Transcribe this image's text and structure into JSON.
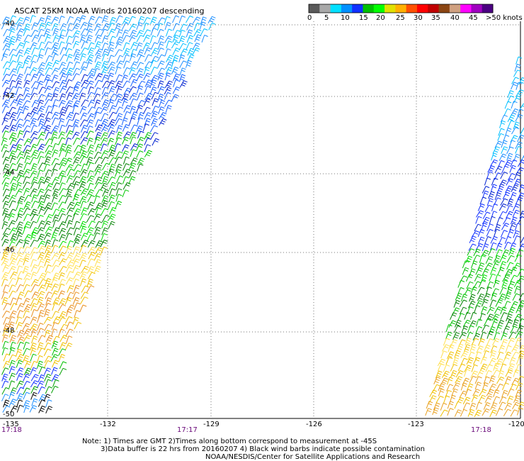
{
  "title": "ASCAT 25KM NOAA Winds 20160207 descending",
  "colorbar": {
    "colors": [
      "#5a5a5a",
      "#a8a8a8",
      "#00e0ff",
      "#0090ff",
      "#1030ff",
      "#00c000",
      "#00ff00",
      "#e0e000",
      "#ffb000",
      "#ff5000",
      "#ff0000",
      "#c00000",
      "#8b4513",
      "#d0a080",
      "#ff00ff",
      "#a000c0",
      "#4b0082"
    ],
    "labels": [
      "0",
      "5",
      "10",
      "15",
      "20",
      "25",
      "30",
      "35",
      "40",
      "45",
      ">50 knots"
    ]
  },
  "axes": {
    "lon_ticks": [
      "-135",
      "-132",
      "-129",
      "-126",
      "-123",
      "-120"
    ],
    "lat_ticks": [
      "-40",
      "-42",
      "-44",
      "-46",
      "-48",
      "-50"
    ]
  },
  "pass_times": [
    "17:18",
    "17:17",
    "17:18"
  ],
  "notes": [
    "Note: 1) Times are GMT 2)Times along bottom correspond to measurement at -45S",
    "3)Data buffer is 22 hrs from 20160207 4) Black wind barbs indicate possible contamination",
    "NOAA/NESDIS/Center for Satellite Applications and Research"
  ]
}
